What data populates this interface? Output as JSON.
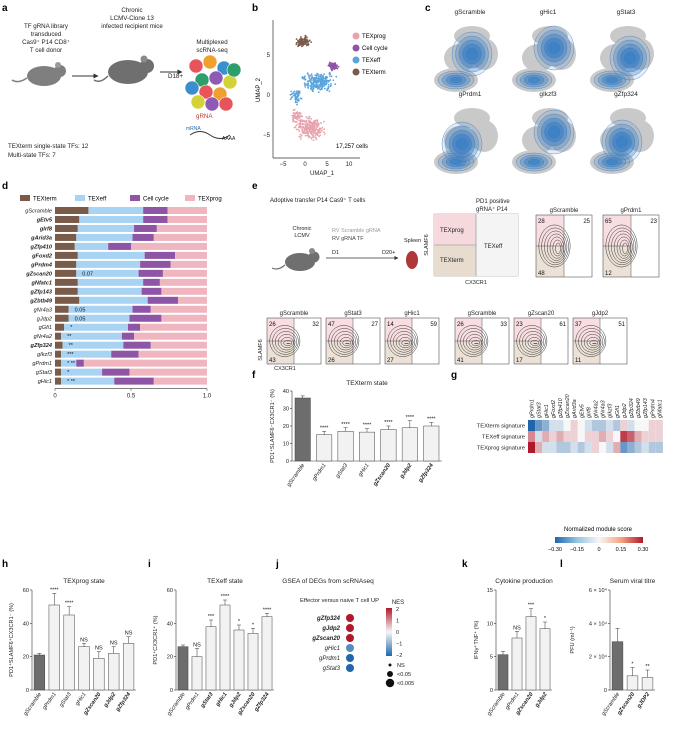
{
  "panel_letters": [
    "a",
    "b",
    "c",
    "d",
    "e",
    "f",
    "g",
    "h",
    "i",
    "j",
    "k",
    "l"
  ],
  "panel_a": {
    "donor": [
      "TF gRNA library",
      "transduced",
      "Cas9⁺ P14 CD8⁺",
      "T cell donor"
    ],
    "recipient": [
      "Chronic",
      "LCMV-Clone 13",
      "infected recipient mice"
    ],
    "seq": [
      "Multiplexed",
      "scRNA-seq"
    ],
    "day": "D18+",
    "gRNA": "gRNA",
    "mRNA": "mRNA",
    "counts": [
      "TEXterm single-state TFs: 12",
      "Multi-state TFs: 7"
    ],
    "colors": {
      "mouse": "#7f7f7f",
      "cells": [
        "#e8545a",
        "#f0a030",
        "#3c8fcf",
        "#2e9e6b",
        "#8e5ab3",
        "#d3d336"
      ]
    }
  },
  "panel_b": {
    "xlabel": "UMAP_1",
    "ylabel": "UMAP_2",
    "xticks": [
      "−5",
      "0",
      "5",
      "10"
    ],
    "yticks": [
      "−5",
      "0",
      "5"
    ],
    "legend": [
      {
        "label": "TEXprog",
        "color": "#e8a3ae"
      },
      {
        "label": "Cell cycle",
        "color": "#8e55a6"
      },
      {
        "label": "TEXeff",
        "color": "#5aa5dc"
      },
      {
        "label": "TEXterm",
        "color": "#7a5a48"
      }
    ],
    "cells_text": "17,257 cells"
  },
  "panel_c": {
    "titles": [
      "gScramble",
      "gHic1",
      "gStat3",
      "gPrdm1",
      "gIkzf3",
      "gZfp324"
    ],
    "colors": {
      "bg": "#c9c9c9",
      "density": "#3b7fc4"
    }
  },
  "panel_d": {
    "legend": [
      {
        "label": "TEXterm",
        "color": "#7a5a48"
      },
      {
        "label": "TEXeff",
        "color": "#a9d3f3"
      },
      {
        "label": "Cell cycle",
        "color": "#8e55a6"
      },
      {
        "label": "TEXprog",
        "color": "#efb6bf"
      }
    ],
    "xticks": [
      "0",
      "0.5",
      "1.0"
    ]
  },
  "chart_data": [
    {
      "type": "bar",
      "title": "",
      "stacked": true,
      "orientation": "horizontal",
      "categories": [
        "gScramble",
        "gEtv5",
        "gIrf8",
        "gArid3a",
        "gZfp410",
        "gFoxd2",
        "gPrdm4",
        "gZscan20",
        "gNfatc1",
        "gZfp143",
        "gZbtb49",
        "gNr4a3",
        "gJdp2",
        "gGfi1",
        "gNr4a2",
        "gZfp324",
        "gIkzf3",
        "gPrdm1",
        "gStat3",
        "gHic1"
      ],
      "bold_categories": [
        "gEtv5",
        "gIrf8",
        "gArid3a",
        "gZfp410",
        "gFoxd2",
        "gPrdm4",
        "gZscan20",
        "gNfatc1",
        "gZfp143",
        "gZbtb49",
        "gZfp324"
      ],
      "series": [
        {
          "name": "TEXterm",
          "values": [
            0.22,
            0.16,
            0.15,
            0.14,
            0.13,
            0.15,
            0.14,
            0.14,
            0.15,
            0.15,
            0.16,
            0.09,
            0.09,
            0.06,
            0.04,
            0.05,
            0.04,
            0.04,
            0.04,
            0.04
          ]
        },
        {
          "name": "TEXeff",
          "values": [
            0.36,
            0.42,
            0.37,
            0.37,
            0.22,
            0.44,
            0.42,
            0.41,
            0.43,
            0.42,
            0.45,
            0.42,
            0.4,
            0.42,
            0.4,
            0.4,
            0.33,
            0.1,
            0.27,
            0.35
          ]
        },
        {
          "name": "Cell cycle",
          "values": [
            0.16,
            0.16,
            0.15,
            0.14,
            0.15,
            0.2,
            0.2,
            0.16,
            0.11,
            0.13,
            0.2,
            0.12,
            0.21,
            0.08,
            0.08,
            0.18,
            0.18,
            0.05,
            0.18,
            0.26
          ]
        },
        {
          "name": "TEXprog",
          "values": [
            0.26,
            0.26,
            0.33,
            0.35,
            0.5,
            0.21,
            0.24,
            0.29,
            0.31,
            0.3,
            0.19,
            0.37,
            0.3,
            0.44,
            0.48,
            0.37,
            0.45,
            0.81,
            0.51,
            0.35
          ]
        }
      ],
      "annotations": [
        "",
        "",
        "",
        "",
        "",
        "",
        "",
        "0.07",
        "",
        "",
        "",
        "0.05",
        "0.05",
        "*",
        "**",
        "**",
        "***",
        "* **",
        "*",
        "* **"
      ],
      "xlim": [
        0,
        1.0
      ]
    },
    {
      "type": "bar",
      "title": "TEXterm state",
      "ylabel": "PD1⁺SLAMF6⁻CX3CR1⁻ (%)",
      "categories": [
        "gScramble",
        "gPrdm1",
        "gStat3",
        "gHic1",
        "gZscan20",
        "gJdp2",
        "gZfp324"
      ],
      "values": [
        36,
        15,
        17,
        16.5,
        18,
        19,
        20
      ],
      "errors": [
        1.2,
        2,
        2,
        2,
        2,
        4,
        2
      ],
      "significance": [
        "",
        "****",
        "****",
        "****",
        "****",
        "****",
        "****"
      ],
      "yticks": [
        "0",
        "10",
        "20",
        "30",
        "40"
      ],
      "ylim": [
        0,
        40
      ]
    },
    {
      "type": "heatmap",
      "columns": [
        "gPrdm1",
        "gStat3",
        "gHic1",
        "gFoxd2",
        "gZfp410",
        "gZscan20",
        "gArid3a",
        "gEtv5",
        "gIrf8",
        "gNr4a2",
        "gNr4a3",
        "gIkzf3",
        "gGfi1",
        "gJdp2",
        "gZfp324",
        "gZbtb49",
        "gZfp143",
        "gPrdm4",
        "gNfatc1"
      ],
      "rows": [
        "TEXterm signature",
        "TEXeff signature",
        "TEXprog signature"
      ],
      "values": [
        [
          -0.3,
          -0.2,
          -0.15,
          -0.05,
          -0.05,
          0.0,
          0.05,
          0.0,
          -0.05,
          -0.1,
          -0.1,
          -0.05,
          -0.1,
          0.05,
          -0.05,
          0.0,
          0.0,
          0.05,
          0.05
        ],
        [
          0.15,
          -0.05,
          0.1,
          0.05,
          0.1,
          0.05,
          0.05,
          0.0,
          0.05,
          0.05,
          0.1,
          0.05,
          0.0,
          0.25,
          0.2,
          0.1,
          0.05,
          0.05,
          0.05
        ],
        [
          0.3,
          0.1,
          -0.05,
          -0.05,
          -0.1,
          -0.1,
          -0.05,
          -0.1,
          -0.05,
          0.05,
          0.0,
          -0.05,
          0.1,
          -0.2,
          -0.15,
          -0.1,
          -0.05,
          -0.1,
          -0.1
        ]
      ],
      "colorbar_label": "Normalized module score",
      "colorbar_ticks": [
        "−0.30",
        "−0.15",
        "0",
        "0.15",
        "0.30"
      ]
    },
    {
      "type": "bar",
      "title": "TEXprog state",
      "ylabel": "PD1⁺SLAMF6⁺CX3CR1⁻ (%)",
      "categories": [
        "gScramble",
        "gPrdm1",
        "gStat3",
        "gHic1",
        "gZscan20",
        "gJdp2",
        "gZfp324"
      ],
      "values": [
        21,
        51,
        45,
        26,
        19,
        22,
        28
      ],
      "errors": [
        1,
        7,
        5,
        2,
        4,
        4,
        4
      ],
      "significance": [
        "",
        "****",
        "****",
        "NS",
        "NS",
        "NS",
        "NS"
      ],
      "yticks": [
        "0",
        "20",
        "40",
        "60"
      ],
      "ylim": [
        0,
        60
      ]
    },
    {
      "type": "bar",
      "title": "TEXeff state",
      "ylabel": "PD1⁺CX3CR1⁺ (%)",
      "categories": [
        "gScramble",
        "gPrdm1",
        "gStat3",
        "gHic1",
        "gJdp2",
        "gZscan20",
        "gZfp324"
      ],
      "values": [
        26,
        20,
        38,
        51,
        36,
        34,
        44
      ],
      "errors": [
        1,
        5,
        4,
        3,
        3,
        3,
        2
      ],
      "significance": [
        "",
        "NS",
        "***",
        "****",
        "*",
        "*",
        "****"
      ],
      "yticks": [
        "0",
        "20",
        "40",
        "60"
      ],
      "ylim": [
        0,
        60
      ]
    },
    {
      "type": "scatter",
      "title": "GSEA of DEGs from scRNAseq",
      "subtitle": "Effector versus naive T cell UP",
      "categories": [
        "gZfp324",
        "gJdp2",
        "gZscan20",
        "gHic1",
        "gPrdm1",
        "gStat3"
      ],
      "nes": [
        2,
        2,
        2,
        -1.5,
        -2,
        -2
      ],
      "significance": [
        "<0.005",
        "<0.005",
        "<0.005",
        "<0.005",
        "<0.005",
        "<0.005"
      ],
      "colorbar_label": "NES",
      "colorbar_ticks": [
        "2",
        "1",
        "0",
        "−1",
        "−2"
      ],
      "size_legend": [
        "NS",
        "<0.05",
        "<0.005"
      ]
    },
    {
      "type": "bar",
      "title": "Cytokine production",
      "ylabel": "IFNγ⁺TNF⁺ (%)",
      "categories": [
        "gScramble",
        "gPrdm1",
        "gZscan20",
        "gJdp2"
      ],
      "values": [
        5.3,
        7.8,
        11,
        9.2
      ],
      "errors": [
        0.5,
        1,
        1.2,
        1
      ],
      "significance": [
        "",
        "NS",
        "***",
        "*"
      ],
      "yticks": [
        "0",
        "5",
        "10",
        "15"
      ],
      "ylim": [
        0,
        15
      ]
    },
    {
      "type": "bar",
      "title": "Serum viral titre",
      "ylabel": "PFU (ml⁻¹)",
      "categories": [
        "gScramble",
        "gZscan20",
        "gJDP2"
      ],
      "values": [
        29000,
        8500,
        7500
      ],
      "errors": [
        8000,
        5000,
        4500
      ],
      "significance": [
        "",
        "*",
        "**"
      ],
      "yticks": [
        "0",
        "2 × 10⁴",
        "4 × 10⁴",
        "6 × 10⁴"
      ],
      "ylim": [
        0,
        60000
      ]
    }
  ],
  "panel_e": {
    "header": "Adoptive transfer P14 Cas9⁺ T cells",
    "mouse_labels": [
      "Chronic",
      "LCMV"
    ],
    "rv_labels": [
      "RV Scramble gRNA",
      "RV gRNA TF"
    ],
    "days": [
      "D1",
      "D20+"
    ],
    "spleen": "Spleen",
    "gate_title": [
      "PD1 positive",
      "gRNA⁺ P14"
    ],
    "gate_labels": {
      "prog": "TEXprog",
      "term": "TEXterm",
      "eff": "TEXeff"
    },
    "axis_y": "SLAMF6",
    "axis_x": "CX3CR1",
    "top_plots": [
      {
        "title": "gScramble",
        "q": [
          "28",
          "25",
          "48"
        ]
      },
      {
        "title": "gPrdm1",
        "q": [
          "65",
          "23",
          "12"
        ]
      }
    ],
    "bottom_plots": [
      {
        "title": "gScramble",
        "q": [
          "26",
          "32",
          "43"
        ]
      },
      {
        "title": "gStat3",
        "q": [
          "47",
          "27",
          "26"
        ]
      },
      {
        "title": "gHic1",
        "q": [
          "14",
          "59",
          "27"
        ]
      },
      {
        "title": "gScramble",
        "q": [
          "26",
          "33",
          "41"
        ]
      },
      {
        "title": "gZscan20",
        "q": [
          "23",
          "61",
          "17"
        ]
      },
      {
        "title": "gJdp2",
        "q": [
          "37",
          "51",
          "11"
        ]
      }
    ]
  }
}
